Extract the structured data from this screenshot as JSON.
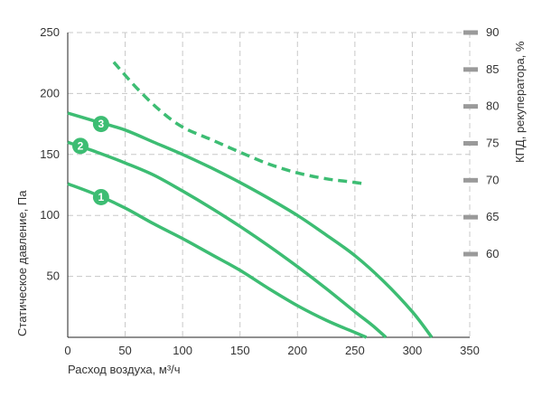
{
  "chart_data": {
    "type": "line",
    "xlabel": "Расход воздуха, м³/ч",
    "ylabel": "Статическое давление, Па",
    "y2label": "КПД, рекуператора, %",
    "xlim": [
      0,
      350
    ],
    "ylim": [
      0,
      250
    ],
    "y2lim": [
      54,
      90
    ],
    "x_ticks": [
      "0",
      "50",
      "100",
      "150",
      "200",
      "250",
      "300",
      "350"
    ],
    "y_ticks": [
      "50",
      "100",
      "150",
      "200",
      "250"
    ],
    "y2_ticks": [
      "60",
      "65",
      "70",
      "75",
      "80",
      "85",
      "90"
    ],
    "grid": true,
    "colors": {
      "series": "#3dbd73",
      "grid": "#c8c8c8",
      "y2_tick": "#9a9a9a"
    },
    "series": [
      {
        "name": "1",
        "axis": "left",
        "style": "solid",
        "x": [
          0,
          25,
          50,
          75,
          100,
          125,
          150,
          175,
          200,
          225,
          250,
          260
        ],
        "y": [
          126,
          117,
          106,
          93,
          81,
          68,
          55,
          40,
          26,
          14,
          4,
          0
        ],
        "marker": {
          "x": 29,
          "y": 115
        }
      },
      {
        "name": "2",
        "axis": "left",
        "style": "solid",
        "x": [
          0,
          25,
          50,
          75,
          100,
          125,
          150,
          175,
          200,
          225,
          250,
          265,
          277
        ],
        "y": [
          160,
          152,
          143,
          133,
          120,
          106,
          91,
          75,
          58,
          40,
          21,
          10,
          0
        ],
        "marker": {
          "x": 11,
          "y": 157
        }
      },
      {
        "name": "3",
        "axis": "left",
        "style": "solid",
        "x": [
          0,
          25,
          50,
          75,
          100,
          125,
          150,
          175,
          200,
          225,
          250,
          275,
          300,
          317
        ],
        "y": [
          184,
          177,
          170,
          160,
          150,
          139,
          127,
          114,
          100,
          84,
          67,
          46,
          21,
          0
        ],
        "marker": {
          "x": 29,
          "y": 175
        }
      },
      {
        "name": "КПД",
        "axis": "right",
        "style": "dashed",
        "x": [
          40,
          60,
          80,
          100,
          125,
          150,
          175,
          200,
          225,
          240,
          260
        ],
        "y": [
          86,
          82.5,
          79.5,
          77.2,
          75.5,
          73.8,
          72.2,
          71,
          70.2,
          69.9,
          69.5
        ]
      }
    ]
  }
}
